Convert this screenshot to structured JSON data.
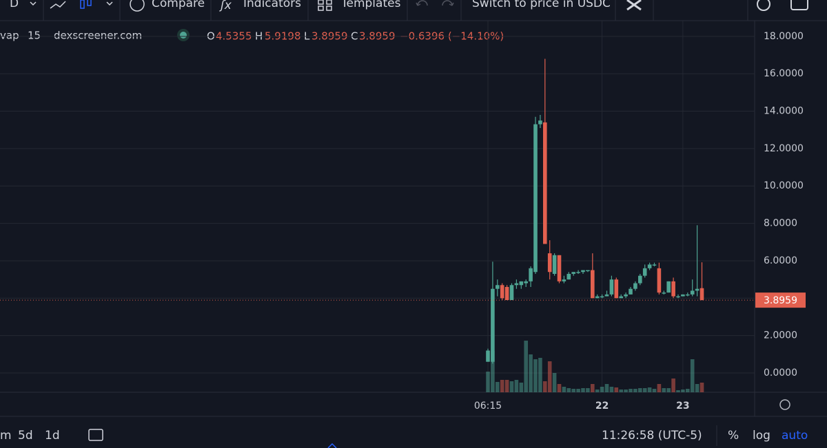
{
  "toolbar": {
    "interval": "D",
    "compare": "Compare",
    "indicators": "Indicators",
    "templates": "Templates",
    "switch": "Switch to price in USDC"
  },
  "legend": {
    "symbol": "vap",
    "interval": "15",
    "source": "dexscreener.com",
    "o": "O",
    "h": "H",
    "l": "L",
    "c": "C",
    "change": "−0.6396 (−14.10%)"
  },
  "bottom_bar": {
    "range_m": "m",
    "range_5d": "5d",
    "range_1d": "1d",
    "clock": "11:26:58 (UTC-5)",
    "percent": "%",
    "log": "log",
    "auto": "auto"
  },
  "chart_data": {
    "type": "candlestick",
    "up_color": "#4fa593",
    "down_color": "#e2604f",
    "categories": [
      "06:15",
      null,
      null,
      null,
      null,
      null,
      null,
      null,
      null,
      null,
      null,
      null,
      null,
      null,
      null,
      null,
      null,
      null,
      null,
      null,
      null,
      null,
      null,
      null,
      "22",
      null,
      null,
      null,
      null,
      null,
      null,
      null,
      null,
      null,
      null,
      null,
      null,
      null,
      null,
      null,
      null,
      "23",
      null,
      null,
      null,
      null
    ],
    "open": [
      0.6,
      0.6,
      4.5,
      4.7,
      4.6,
      3.9,
      4.7,
      4.7,
      4.8,
      4.9,
      5.4,
      13.3,
      13.4,
      6.4,
      5.3,
      6.3,
      4.9,
      5.0,
      5.3,
      5.4,
      5.4,
      5.5,
      5.5,
      4.0,
      4.1,
      4.1,
      4.2,
      5.0,
      4.0,
      4.1,
      4.2,
      4.5,
      4.8,
      5.2,
      5.6,
      5.8,
      5.6,
      4.3,
      4.3,
      4.9,
      4.1,
      4.1,
      4.2,
      4.2,
      4.4,
      4.5355
    ],
    "high": [
      1.3,
      5.95,
      5.0,
      4.8,
      4.7,
      4.8,
      5.0,
      4.9,
      5.0,
      5.7,
      13.7,
      13.8,
      16.8,
      7.1,
      6.4,
      6.3,
      5.2,
      5.4,
      5.4,
      5.5,
      5.5,
      5.5,
      6.4,
      4.2,
      4.2,
      4.4,
      5.2,
      5.1,
      4.2,
      4.3,
      4.6,
      4.9,
      5.3,
      5.8,
      5.9,
      5.9,
      5.9,
      4.4,
      4.9,
      5.1,
      4.2,
      4.2,
      4.3,
      5.0,
      7.9,
      5.9198
    ],
    "low": [
      0.6,
      0.5,
      4.1,
      3.9,
      3.9,
      3.9,
      4.5,
      4.5,
      4.6,
      4.6,
      5.3,
      13.1,
      6.9,
      5.0,
      5.2,
      4.8,
      4.8,
      5.0,
      5.2,
      5.3,
      5.3,
      5.4,
      4.0,
      4.0,
      4.0,
      4.1,
      4.1,
      4.0,
      4.0,
      4.0,
      4.2,
      4.4,
      4.7,
      5.1,
      5.5,
      5.7,
      4.2,
      4.2,
      4.3,
      4.0,
      4.0,
      4.1,
      4.1,
      4.1,
      4.1,
      3.8959
    ],
    "close": [
      1.2,
      4.5,
      4.7,
      4.0,
      3.9,
      4.7,
      4.8,
      4.9,
      4.9,
      5.6,
      13.3,
      13.5,
      6.9,
      5.4,
      6.3,
      4.9,
      5.0,
      5.3,
      5.4,
      5.4,
      5.5,
      5.5,
      4.0,
      4.1,
      4.1,
      4.2,
      5.0,
      4.0,
      4.1,
      4.2,
      4.5,
      4.8,
      5.2,
      5.6,
      5.8,
      5.8,
      4.3,
      4.3,
      4.9,
      4.1,
      4.1,
      4.2,
      4.2,
      4.4,
      4.5,
      3.8959
    ],
    "volume": [
      30,
      60,
      15,
      18,
      18,
      16,
      18,
      14,
      75,
      55,
      48,
      50,
      16,
      45,
      28,
      12,
      8,
      6,
      5,
      5,
      6,
      6,
      12,
      4,
      8,
      12,
      8,
      7,
      4,
      4,
      5,
      5,
      6,
      6,
      7,
      5,
      12,
      6,
      6,
      20,
      3,
      4,
      5,
      48,
      12,
      14
    ],
    "ylim": [
      -1.03,
      18.84
    ],
    "yticks": [
      {
        "value": 0,
        "label": "0.0000"
      },
      {
        "value": 2,
        "label": "2.0000"
      },
      {
        "value": 4,
        "label": "4.0000"
      },
      {
        "value": 6,
        "label": "6.0000"
      },
      {
        "value": 8,
        "label": "8.0000"
      },
      {
        "value": 10,
        "label": "10.0000"
      },
      {
        "value": 12,
        "label": "12.0000"
      },
      {
        "value": 14,
        "label": "14.0000"
      },
      {
        "value": 16,
        "label": "16.0000"
      },
      {
        "value": 18,
        "label": "18.0000"
      }
    ],
    "grid": true
  }
}
